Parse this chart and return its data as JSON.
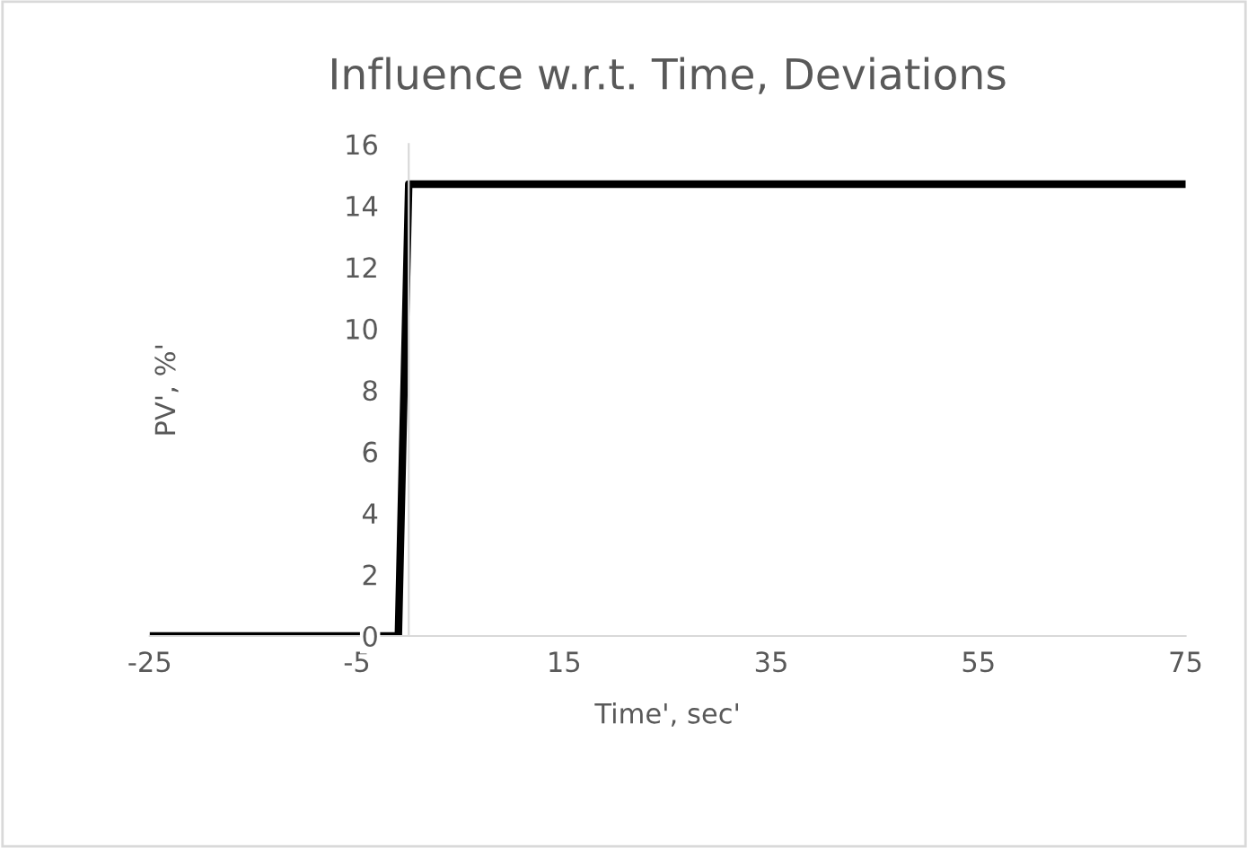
{
  "chart_data": {
    "type": "line",
    "title": "Influence w.r.t. Time, Deviations",
    "xlabel": "Time', sec'",
    "ylabel": "PV', %'",
    "x": [
      -25,
      -1,
      0,
      75
    ],
    "series": [
      {
        "color": "#000000",
        "values": [
          0,
          0,
          14.7,
          14.7
        ]
      }
    ],
    "xlim": [
      -25,
      75
    ],
    "xticks": [
      -25,
      -5,
      15,
      35,
      55,
      75
    ],
    "ylim": [
      0,
      16
    ],
    "yticks": [
      0,
      2,
      4,
      6,
      8,
      10,
      12,
      14,
      16
    ],
    "grid": false,
    "legend": false,
    "marker": "none",
    "line_style": "solid"
  }
}
